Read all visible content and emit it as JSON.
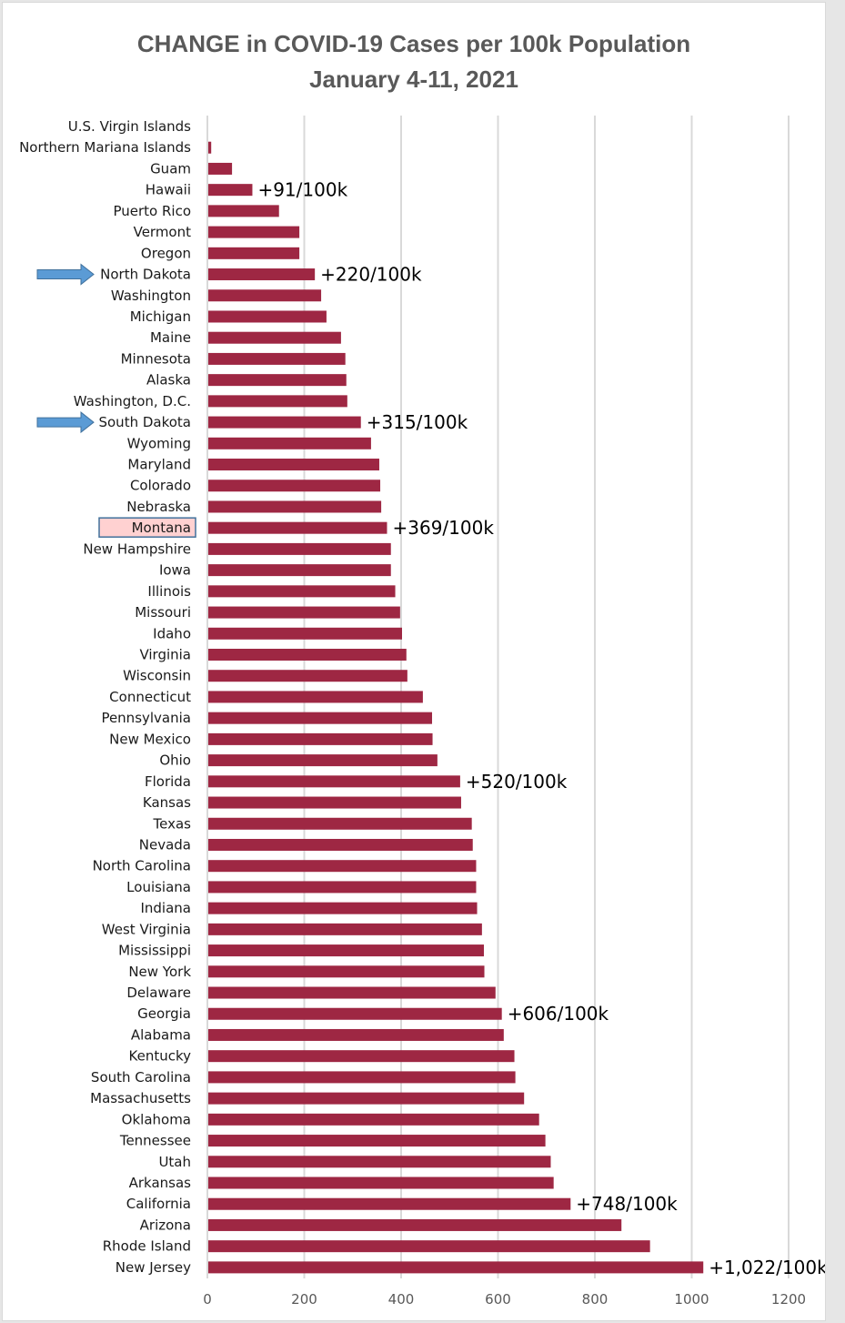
{
  "chart_data": {
    "type": "bar",
    "orientation": "horizontal",
    "title": "CHANGE in COVID-19 Cases per 100k Population",
    "subtitle": "January 4-11, 2021",
    "xlabel": "",
    "ylabel": "",
    "xlim": [
      0,
      1200
    ],
    "xticks": [
      "0",
      "200",
      "400",
      "600",
      "800",
      "1000",
      "1200"
    ],
    "grid": "vertical",
    "bar_color": "#9e2743",
    "categories": [
      "U.S. Virgin Islands",
      "Northern Mariana Islands",
      "Guam",
      "Hawaii",
      "Puerto Rico",
      "Vermont",
      "Oregon",
      "North Dakota",
      "Washington",
      "Michigan",
      "Maine",
      "Minnesota",
      "Alaska",
      "Washington, D.C.",
      "South Dakota",
      "Wyoming",
      "Maryland",
      "Colorado",
      "Nebraska",
      "Montana",
      "New Hampshire",
      "Iowa",
      "Illinois",
      "Missouri",
      "Idaho",
      "Virginia",
      "Wisconsin",
      "Connecticut",
      "Pennsylvania",
      "New Mexico",
      "Ohio",
      "Florida",
      "Kansas",
      "Texas",
      "Nevada",
      "North Carolina",
      "Louisiana",
      "Indiana",
      "West Virginia",
      "Mississippi",
      "New York",
      "Delaware",
      "Georgia",
      "Alabama",
      "Kentucky",
      "South Carolina",
      "Massachusetts",
      "Oklahoma",
      "Tennessee",
      "Utah",
      "Arkansas",
      "California",
      "Arizona",
      "Rhode Island",
      "New Jersey"
    ],
    "values": [
      0,
      6,
      49,
      91,
      146,
      188,
      188,
      220,
      233,
      244,
      274,
      283,
      285,
      287,
      315,
      336,
      353,
      355,
      357,
      369,
      377,
      377,
      386,
      396,
      400,
      409,
      411,
      443,
      462,
      463,
      473,
      520,
      522,
      544,
      546,
      553,
      553,
      555,
      565,
      569,
      570,
      593,
      606,
      610,
      632,
      634,
      652,
      683,
      696,
      707,
      713,
      748,
      853,
      912,
      1022
    ],
    "annotations": [
      {
        "category": "Hawaii",
        "text": "+91/100k"
      },
      {
        "category": "North Dakota",
        "text": "+220/100k"
      },
      {
        "category": "South Dakota",
        "text": "+315/100k"
      },
      {
        "category": "Montana",
        "text": "+369/100k"
      },
      {
        "category": "Florida",
        "text": "+520/100k"
      },
      {
        "category": "Georgia",
        "text": "+606/100k"
      },
      {
        "category": "California",
        "text": "+748/100k"
      },
      {
        "category": "New Jersey",
        "text": "+1,022/100k"
      }
    ],
    "arrows": [
      "North Dakota",
      "South Dakota"
    ],
    "highlighted_category": "Montana",
    "colors": {
      "bar": "#9e2743",
      "arrow_fill": "#5b9bd5",
      "arrow_stroke": "#41719c",
      "highlight_fill": "#ffd1d1",
      "highlight_stroke": "#41719c",
      "grid": "#d9d9d9",
      "title": "#595959"
    }
  }
}
